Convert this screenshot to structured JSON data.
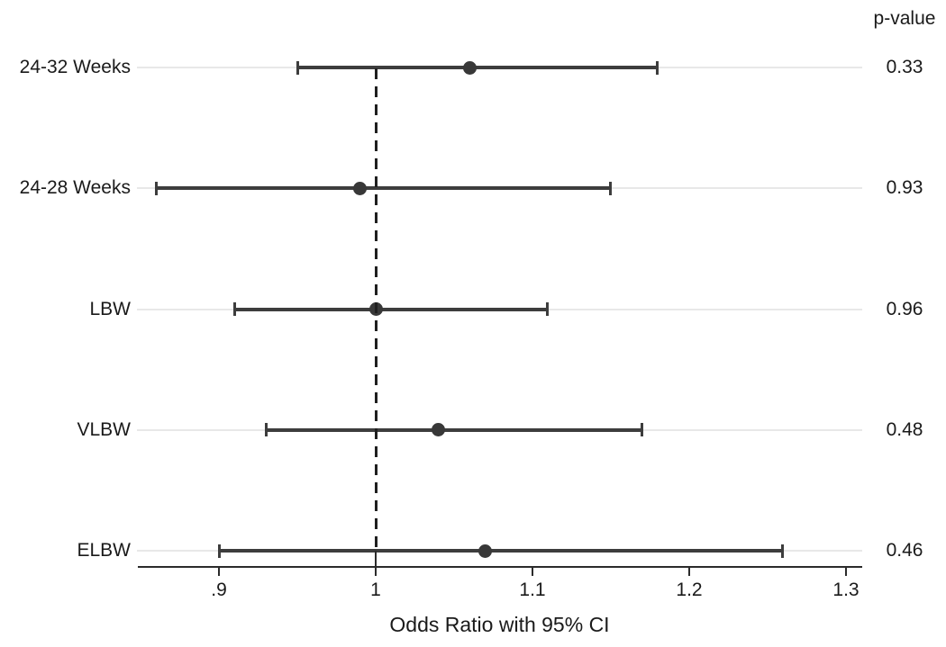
{
  "chart_data": {
    "type": "forest",
    "title": "",
    "xlabel": "Odds Ratio with 95% CI",
    "pvalue_header": "p-value",
    "xlim": [
      0.848,
      1.31
    ],
    "x_ticks": [
      {
        "value": 0.9,
        "label": ".9"
      },
      {
        "value": 1.0,
        "label": "1"
      },
      {
        "value": 1.1,
        "label": "1.1"
      },
      {
        "value": 1.2,
        "label": "1.2"
      },
      {
        "value": 1.3,
        "label": "1.3"
      }
    ],
    "reference_line": {
      "value": 1.0,
      "style": "dashed"
    },
    "grid": "off",
    "rows": [
      {
        "label": "24-32 Weeks",
        "or": 1.06,
        "ci_low": 0.95,
        "ci_high": 1.18,
        "p_value": "0.33"
      },
      {
        "label": "24-28 Weeks",
        "or": 0.99,
        "ci_low": 0.86,
        "ci_high": 1.15,
        "p_value": "0.93"
      },
      {
        "label": "LBW",
        "or": 1.0,
        "ci_low": 0.91,
        "ci_high": 1.11,
        "p_value": "0.96"
      },
      {
        "label": "VLBW",
        "or": 1.04,
        "ci_low": 0.93,
        "ci_high": 1.17,
        "p_value": "0.48"
      },
      {
        "label": "ELBW",
        "or": 1.07,
        "ci_low": 0.9,
        "ci_high": 1.26,
        "p_value": "0.46"
      }
    ],
    "colors": {
      "ci_line": "#3d3d3d",
      "marker": "#383838",
      "guide_line": "#e8e8e8",
      "reference_line": "#1f1f1f",
      "axis": "#2b2b2b",
      "text": "#1a1a1a",
      "background": "#ffffff"
    }
  }
}
